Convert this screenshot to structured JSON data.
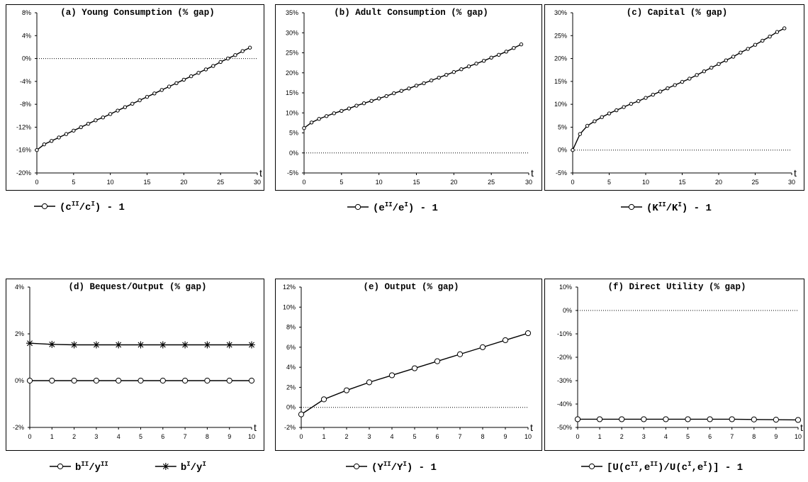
{
  "chart_data": [
    {
      "id": "a",
      "type": "line",
      "title": "(a) Young Consumption (% gap)",
      "xlabel": "t",
      "xlim": [
        0,
        30
      ],
      "xticks": [
        "0",
        "5",
        "10",
        "15",
        "20",
        "25",
        "30"
      ],
      "ylim": [
        -20,
        8
      ],
      "yticks": [
        "8%",
        "4%",
        "0%",
        "-4%",
        "-8%",
        "-12%",
        "-16%",
        "-20%"
      ],
      "reference_line": 0,
      "legend_position": "bottom",
      "series": [
        {
          "legend": [
            "(c",
            "II",
            "/c",
            "I",
            ") - 1"
          ],
          "marker": "circle",
          "x": [
            0,
            1,
            2,
            3,
            4,
            5,
            6,
            7,
            8,
            9,
            10,
            11,
            12,
            13,
            14,
            15,
            16,
            17,
            18,
            19,
            20,
            21,
            22,
            23,
            24,
            25,
            26,
            27,
            28,
            29
          ],
          "values": [
            -16,
            -15.0,
            -14.4,
            -13.8,
            -13.2,
            -12.6,
            -12.0,
            -11.4,
            -10.8,
            -10.3,
            -9.7,
            -9.1,
            -8.5,
            -7.9,
            -7.3,
            -6.7,
            -6.1,
            -5.5,
            -4.9,
            -4.3,
            -3.7,
            -3.1,
            -2.5,
            -1.9,
            -1.3,
            -0.6,
            0.0,
            0.6,
            1.3,
            1.9
          ]
        }
      ]
    },
    {
      "id": "b",
      "type": "line",
      "title": "(b) Adult Consumption (% gap)",
      "xlabel": "t",
      "xlim": [
        0,
        30
      ],
      "xticks": [
        "0",
        "5",
        "10",
        "15",
        "20",
        "25",
        "30"
      ],
      "ylim": [
        -5,
        35
      ],
      "yticks": [
        "35%",
        "30%",
        "25%",
        "20%",
        "15%",
        "10%",
        "5%",
        "0%",
        "-5%"
      ],
      "reference_line": 0,
      "legend_position": "bottom",
      "series": [
        {
          "legend": [
            "(e",
            "II",
            "/e",
            "I",
            ") - 1"
          ],
          "marker": "circle",
          "x": [
            0,
            1,
            2,
            3,
            4,
            5,
            6,
            7,
            8,
            9,
            10,
            11,
            12,
            13,
            14,
            15,
            16,
            17,
            18,
            19,
            20,
            21,
            22,
            23,
            24,
            25,
            26,
            27,
            28,
            29
          ],
          "values": [
            6.2,
            7.6,
            8.5,
            9.2,
            9.9,
            10.5,
            11.1,
            11.8,
            12.4,
            13.0,
            13.6,
            14.2,
            14.9,
            15.5,
            16.1,
            16.8,
            17.4,
            18.1,
            18.8,
            19.5,
            20.2,
            20.9,
            21.6,
            22.3,
            23.0,
            23.8,
            24.5,
            25.3,
            26.2,
            27.1
          ]
        }
      ]
    },
    {
      "id": "c",
      "type": "line",
      "title": "(c) Capital (% gap)",
      "xlabel": "t",
      "xlim": [
        0,
        30
      ],
      "xticks": [
        "0",
        "5",
        "10",
        "15",
        "20",
        "25",
        "30"
      ],
      "ylim": [
        -5,
        30
      ],
      "yticks": [
        "30%",
        "25%",
        "20%",
        "15%",
        "10%",
        "5%",
        "0%",
        "-5%"
      ],
      "reference_line": 0,
      "legend_position": "bottom",
      "series": [
        {
          "legend": [
            "(K",
            "II",
            "/K",
            "I",
            ") - 1"
          ],
          "marker": "circle",
          "x": [
            0,
            1,
            2,
            3,
            4,
            5,
            6,
            7,
            8,
            9,
            10,
            11,
            12,
            13,
            14,
            15,
            16,
            17,
            18,
            19,
            20,
            21,
            22,
            23,
            24,
            25,
            26,
            27,
            28,
            29
          ],
          "values": [
            0,
            3.5,
            5.3,
            6.3,
            7.2,
            8.0,
            8.7,
            9.4,
            10.1,
            10.7,
            11.4,
            12.1,
            12.8,
            13.5,
            14.2,
            14.9,
            15.6,
            16.4,
            17.2,
            18.0,
            18.8,
            19.6,
            20.4,
            21.3,
            22.1,
            23.0,
            23.9,
            24.8,
            25.8,
            26.6
          ]
        }
      ]
    },
    {
      "id": "d",
      "type": "line",
      "title": "(d) Bequest/Output (% gap)",
      "xlabel": "t",
      "xlim": [
        0,
        10
      ],
      "xticks": [
        "0",
        "1",
        "2",
        "3",
        "4",
        "5",
        "6",
        "7",
        "8",
        "9",
        "10"
      ],
      "ylim": [
        -2,
        4
      ],
      "yticks": [
        "4%",
        "2%",
        "0%",
        "-2%"
      ],
      "reference_line": null,
      "legend_position": "bottom",
      "series": [
        {
          "legend": [
            "b",
            "II",
            "/y",
            "II",
            ""
          ],
          "marker": "circle",
          "x": [
            0,
            1,
            2,
            3,
            4,
            5,
            6,
            7,
            8,
            9,
            10
          ],
          "values": [
            0,
            0,
            0,
            0,
            0,
            0,
            0,
            0,
            0,
            0,
            0
          ]
        },
        {
          "legend": [
            "b",
            "I",
            "/y",
            "I",
            ""
          ],
          "marker": "star",
          "x": [
            0,
            1,
            2,
            3,
            4,
            5,
            6,
            7,
            8,
            9,
            10
          ],
          "values": [
            1.6,
            1.55,
            1.53,
            1.53,
            1.53,
            1.53,
            1.53,
            1.53,
            1.53,
            1.53,
            1.53
          ]
        }
      ]
    },
    {
      "id": "e",
      "type": "line",
      "title": "(e) Output (% gap)",
      "xlabel": "t",
      "xlim": [
        0,
        10
      ],
      "xticks": [
        "0",
        "1",
        "2",
        "3",
        "4",
        "5",
        "6",
        "7",
        "8",
        "9",
        "10"
      ],
      "ylim": [
        -2,
        12
      ],
      "yticks": [
        "12%",
        "10%",
        "8%",
        "6%",
        "4%",
        "2%",
        "0%",
        "-2%"
      ],
      "reference_line": 0,
      "legend_position": "bottom",
      "series": [
        {
          "legend": [
            "(Y",
            "II",
            "/Y",
            "I",
            ") - 1"
          ],
          "marker": "circle",
          "x": [
            0,
            1,
            2,
            3,
            4,
            5,
            6,
            7,
            8,
            9,
            10
          ],
          "values": [
            -0.7,
            0.8,
            1.7,
            2.5,
            3.2,
            3.9,
            4.6,
            5.3,
            6.0,
            6.7,
            7.4
          ]
        }
      ]
    },
    {
      "id": "f",
      "type": "line",
      "title": "(f) Direct Utility (% gap)",
      "xlabel": "t",
      "xlim": [
        0,
        10
      ],
      "xticks": [
        "0",
        "1",
        "2",
        "3",
        "4",
        "5",
        "6",
        "7",
        "8",
        "9",
        "10"
      ],
      "ylim": [
        -50,
        10
      ],
      "yticks": [
        "10%",
        "0%",
        "-10%",
        "-20%",
        "-30%",
        "-40%",
        "-50%"
      ],
      "reference_line": 0,
      "legend_position": "bottom",
      "series": [
        {
          "legend": [
            "[U(c",
            "II",
            ",e",
            "II",
            ")/U(c",
            "I",
            ",e",
            "I",
            ")] - 1"
          ],
          "marker": "circle",
          "x": [
            0,
            1,
            2,
            3,
            4,
            5,
            6,
            7,
            8,
            9,
            10
          ],
          "values": [
            -46.5,
            -46.5,
            -46.5,
            -46.5,
            -46.5,
            -46.5,
            -46.5,
            -46.5,
            -46.6,
            -46.7,
            -46.8
          ]
        }
      ]
    }
  ]
}
